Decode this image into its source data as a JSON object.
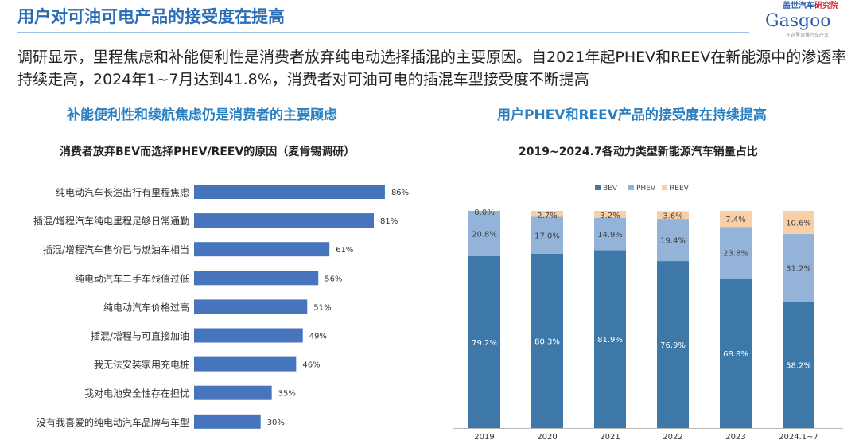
{
  "header": {
    "title": "用户对可油可电产品的接受度在提高"
  },
  "logo": {
    "cn_name": "盖世汽车研究院",
    "brand": "Gasgoo",
    "tagline": "在这里读懂汽车产业"
  },
  "intro": "调研显示，里程焦虑和补能便利性是消费者放弃纯电动选择插混的主要原因。自2021年起PHEV和REEV在新能源中的渗透率持续走高，2024年1~7月达到41.8%，消费者对可油可电的插混车型接受度不断提高",
  "left_panel": {
    "subtitle": "补能便利性和续航焦虑仍是消费者的主要顾虑"
  },
  "right_panel": {
    "subtitle": "用户PHEV和REEV产品的接受度在持续提高"
  },
  "colors": {
    "bev": "#3e78a9",
    "phev": "#93b3d9",
    "reev": "#f8cfa6",
    "hbar": "#4775bd",
    "accent": "#2a6db5"
  },
  "chart_data": [
    {
      "type": "bar",
      "orientation": "horizontal",
      "title": "消费者放弃BEV而选择PHEV/REEV的原因（麦肯锡调研）",
      "categories": [
        "纯电动汽车长途出行有里程焦虑",
        "插混/增程汽车纯电里程足够日常通勤",
        "插混/增程汽车售价已与燃油车相当",
        "纯电动汽车二手车残值过低",
        "纯电动汽车价格过高",
        "插混/增程与可直接加油",
        "我无法安装家用充电桩",
        "我对电池安全性存在担忧",
        "没有我喜爱的纯电动汽车品牌与车型"
      ],
      "values": [
        86,
        81,
        61,
        56,
        51,
        49,
        46,
        35,
        30
      ],
      "value_labels": [
        "86%",
        "81%",
        "61%",
        "56%",
        "51%",
        "49%",
        "46%",
        "35%",
        "30%"
      ],
      "xlim": [
        0,
        100
      ],
      "grid": false
    },
    {
      "type": "bar",
      "stacked": true,
      "title": "2019~2024.7各动力类型新能源汽车销量占比",
      "categories": [
        "2019",
        "2020",
        "2021",
        "2022",
        "2023",
        "2024.1~7"
      ],
      "series": [
        {
          "name": "BEV",
          "values": [
            79.2,
            80.3,
            81.9,
            76.9,
            68.8,
            58.2
          ],
          "labels": [
            "79.2%",
            "80.3%",
            "81.9%",
            "76.9%",
            "68.8%",
            "58.2%"
          ]
        },
        {
          "name": "PHEV",
          "values": [
            20.8,
            17.0,
            14.9,
            19.4,
            23.8,
            31.2
          ],
          "labels": [
            "20.8%",
            "17.0%",
            "14.9%",
            "19.4%",
            "23.8%",
            "31.2%"
          ]
        },
        {
          "name": "REEV",
          "values": [
            0.0,
            2.7,
            3.2,
            3.6,
            7.4,
            10.6
          ],
          "labels": [
            "0.0%",
            "2.7%",
            "3.2%",
            "3.6%",
            "7.4%",
            "10.6%"
          ]
        }
      ],
      "ylim": [
        0,
        100
      ],
      "legend": "top",
      "grid": false
    }
  ]
}
